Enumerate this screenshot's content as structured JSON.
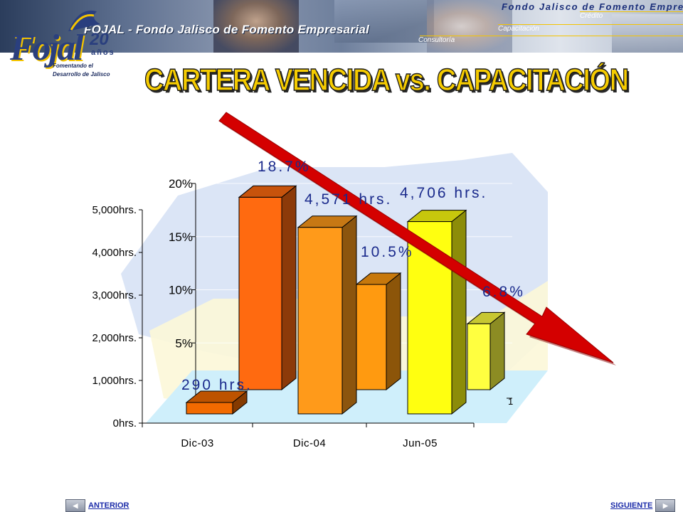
{
  "header": {
    "org_name": "FOJAL - Fondo Jalisco de Fomento Empresarial",
    "org_name_top": "Fondo Jalisco de Fomento Empresarial",
    "services": [
      "Crédito",
      "Capacitación",
      "Consultoría"
    ],
    "logo_text": "Fojal",
    "logo_years": "20",
    "logo_years_word": "años",
    "logo_tagline_1": "Fomentando el",
    "logo_tagline_2": "Desarrollo de Jalisco"
  },
  "title": "CARTERA VENCIDA vs. CAPACITACIÓN",
  "chart_data": {
    "type": "bar",
    "categories": [
      "Dic-03",
      "Dic-04",
      "Jun-05"
    ],
    "series": [
      {
        "values": [
          290,
          4571,
          4706
        ],
        "data_labels": [
          "290 hrs.",
          "4,571 hrs.",
          "4,706 hrs."
        ]
      },
      {
        "values": [
          18.7,
          10.5,
          6.8
        ],
        "data_labels": [
          "18.7%",
          "10.5%",
          "6.8%"
        ]
      }
    ],
    "y_left": {
      "ticks": [
        "0hrs.",
        "1,000hrs.",
        "2,000hrs.",
        "3,000hrs.",
        "4,000hrs.",
        "5,000hrs."
      ],
      "ylim": [
        0,
        5000
      ]
    },
    "y_right": {
      "ticks": [
        "5%",
        "10%",
        "15%",
        "20%"
      ],
      "ylim": [
        0,
        20
      ]
    },
    "trend": "decreasing",
    "colors": {
      "hrs_bar_1": "#f26a00",
      "hrs_bar_2": "#ff9a1a",
      "hrs_bar_3": "#ffff10",
      "pct_bar_1": "#ff6a10",
      "pct_bar_2": "#ff9a10",
      "pct_bar_3": "#ffff40",
      "arrow": "#d40000",
      "label": "#1a2a8c"
    }
  },
  "nav": {
    "prev_label": "ANTERIOR",
    "next_label": "SIGUIENTE"
  }
}
